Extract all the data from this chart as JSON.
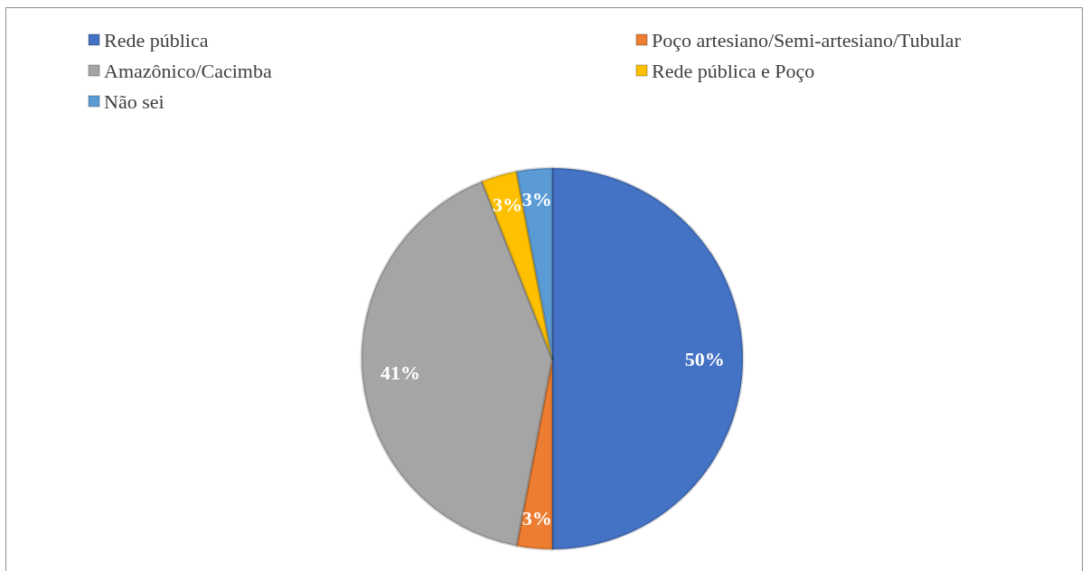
{
  "chart_data": {
    "type": "pie",
    "categories": [
      "Rede pública",
      "Poço artesiano/Semi-artesiano/Tubular",
      "Amazônico/Cacimba",
      "Rede pública e Poço",
      "Não sei"
    ],
    "values": [
      50,
      3,
      41,
      3,
      3
    ],
    "colors": [
      "#4472c4",
      "#ed7d31",
      "#a5a5a5",
      "#ffc000",
      "#5b9bd5"
    ],
    "value_labels": [
      "50%",
      "3%",
      "41%",
      "3%",
      "3%"
    ],
    "legend": "top"
  }
}
